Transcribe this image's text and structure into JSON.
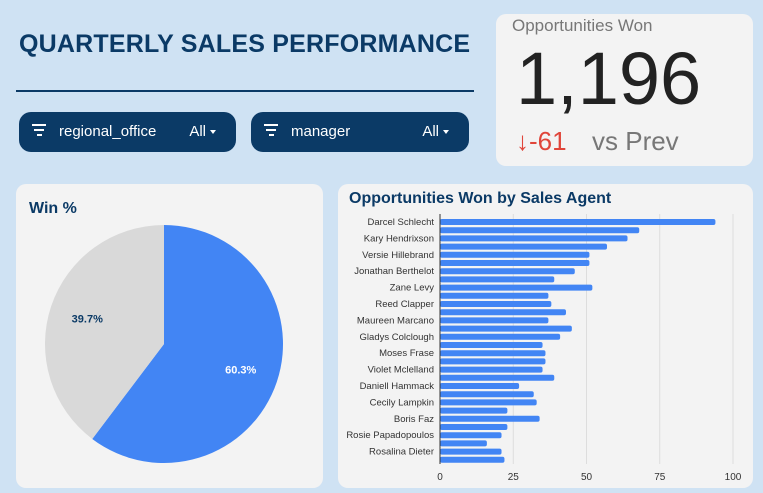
{
  "header": {
    "title": "QUARTERLY SALES PERFORMANCE"
  },
  "filters": [
    {
      "label": "regional_office",
      "value": "All",
      "icon": "filter-icon"
    },
    {
      "label": "manager",
      "value": "All",
      "icon": "filter-icon"
    }
  ],
  "kpi": {
    "label": "Opportunities Won",
    "value": "1,196",
    "delta": "-61",
    "delta_icon": "arrow-down-icon",
    "comparison": "vs Prev",
    "delta_color": "#e0453a"
  },
  "chart_data": [
    {
      "type": "pie",
      "title": "Win %",
      "slices": [
        {
          "value": 60.3,
          "label": "60.3%",
          "color": "#4285f4"
        },
        {
          "value": 39.7,
          "label": "39.7%",
          "color": "#d9d9d9"
        }
      ]
    },
    {
      "type": "bar",
      "orientation": "horizontal",
      "title": "Opportunities Won by Sales Agent",
      "color": "#4285f4",
      "categories": [
        "Darcel Schlecht",
        "",
        "Kary Hendrixson",
        "",
        "Versie Hillebrand",
        "",
        "Jonathan Berthelot",
        "",
        "Zane Levy",
        "",
        "Reed Clapper",
        "",
        "Maureen Marcano",
        "",
        "Gladys Colclough",
        "",
        "Moses Frase",
        "",
        "Violet Mclelland",
        "",
        "Daniell Hammack",
        "",
        "Cecily Lampkin",
        "",
        "Boris Faz",
        "",
        "Rosie Papadopoulos",
        "",
        "Rosalina Dieter",
        ""
      ],
      "values": [
        94,
        68,
        64,
        57,
        51,
        51,
        46,
        39,
        52,
        37,
        38,
        43,
        37,
        45,
        41,
        35,
        36,
        36,
        35,
        39,
        27,
        32,
        33,
        23,
        34,
        23,
        21,
        16,
        21,
        22
      ],
      "xlim": [
        0,
        100
      ],
      "xticks": [
        "0",
        "25",
        "50",
        "75",
        "100"
      ],
      "grid": true
    }
  ]
}
